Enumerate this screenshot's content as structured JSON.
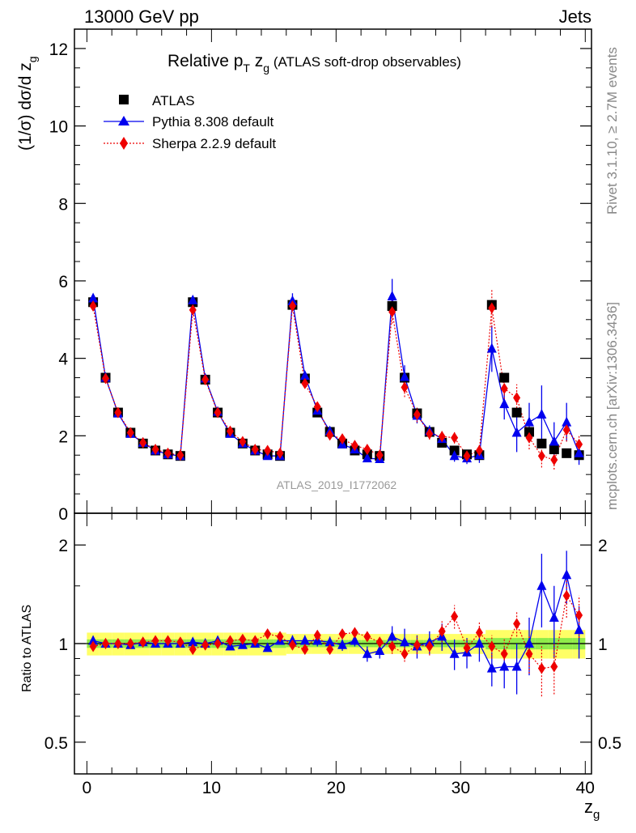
{
  "header": {
    "left": "13000 GeV pp",
    "right": "Jets"
  },
  "side_labels": {
    "rivet": "Rivet 3.1.10, ≥ 2.7M events",
    "mcplots": "mcplots.cern.ch [arXiv:1306.3436]"
  },
  "colors": {
    "atlas": "#000000",
    "pythia": "#0000ee",
    "sherpa": "#ee0000",
    "band_inner": "#33dd33",
    "band_outer": "#ffff66"
  },
  "chart_data": [
    {
      "type": "scatter",
      "title_main": "Relative p",
      "title_sub_T": "T",
      "title_mid": " z",
      "title_sub_g": "g",
      "title_rest": " (ATLAS soft-drop observables)",
      "ylabel": "(1/σ) dσ/d z",
      "ylabel_sub": "g",
      "watermark": "ATLAS_2019_I1772062",
      "xlim": [
        -1,
        40.5
      ],
      "ylim": [
        0,
        12.5
      ],
      "yticks": [
        "0",
        "2",
        "4",
        "6",
        "8",
        "10",
        "12"
      ],
      "legend": [
        {
          "label": "ATLAS",
          "marker": "square"
        },
        {
          "label": "Pythia 8.308 default",
          "marker": "triangle"
        },
        {
          "label": "Sherpa 2.2.9 default",
          "marker": "diamond"
        }
      ],
      "x": [
        0.5,
        1.5,
        2.5,
        3.5,
        4.5,
        5.5,
        6.5,
        7.5,
        8.5,
        9.5,
        10.5,
        11.5,
        12.5,
        13.5,
        14.5,
        15.5,
        16.5,
        17.5,
        18.5,
        19.5,
        20.5,
        21.5,
        22.5,
        23.5,
        24.5,
        25.5,
        26.5,
        27.5,
        28.5,
        29.5,
        30.5,
        31.5,
        32.5,
        33.5,
        34.5,
        35.5,
        36.5,
        37.5,
        38.5,
        39.5
      ],
      "series": [
        {
          "name": "ATLAS",
          "values": [
            5.45,
            3.5,
            2.6,
            2.08,
            1.8,
            1.62,
            1.52,
            1.48,
            5.45,
            3.45,
            2.6,
            2.08,
            1.8,
            1.62,
            1.52,
            1.48,
            5.38,
            3.48,
            2.6,
            2.1,
            1.8,
            1.62,
            1.52,
            1.48,
            5.35,
            3.5,
            2.58,
            2.1,
            1.82,
            1.62,
            1.52,
            1.5,
            5.38,
            3.5,
            2.6,
            2.1,
            1.8,
            1.65,
            1.55,
            1.5
          ]
        },
        {
          "name": "Pythia 8.308 default",
          "values": [
            5.55,
            3.5,
            2.58,
            2.05,
            1.82,
            1.62,
            1.52,
            1.48,
            5.5,
            3.48,
            2.62,
            2.05,
            1.8,
            1.62,
            1.48,
            1.48,
            5.48,
            3.55,
            2.65,
            2.12,
            1.78,
            1.65,
            1.42,
            1.4,
            5.6,
            3.52,
            2.52,
            2.12,
            1.92,
            1.48,
            1.42,
            1.5,
            4.25,
            2.82,
            2.08,
            2.35,
            2.55,
            1.85,
            2.35,
            1.55
          ],
          "errors": [
            0.05,
            0.03,
            0.03,
            0.03,
            0.02,
            0.02,
            0.02,
            0.02,
            0.05,
            0.03,
            0.03,
            0.03,
            0.02,
            0.02,
            0.03,
            0.03,
            0.2,
            0.1,
            0.08,
            0.06,
            0.05,
            0.05,
            0.05,
            0.05,
            0.45,
            0.3,
            0.2,
            0.15,
            0.15,
            0.15,
            0.15,
            0.2,
            0.6,
            0.4,
            0.5,
            0.5,
            0.75,
            0.5,
            0.5,
            0.3
          ]
        },
        {
          "name": "Sherpa 2.2.9 default",
          "values": [
            5.35,
            3.48,
            2.6,
            2.08,
            1.82,
            1.65,
            1.55,
            1.5,
            5.25,
            3.45,
            2.6,
            2.12,
            1.85,
            1.65,
            1.62,
            1.55,
            5.35,
            3.35,
            2.75,
            2.02,
            1.92,
            1.75,
            1.65,
            1.5,
            5.2,
            3.25,
            2.55,
            2.05,
            1.98,
            1.95,
            1.48,
            1.62,
            5.3,
            3.22,
            2.98,
            1.95,
            1.48,
            1.38,
            2.15,
            1.78
          ],
          "errors": [
            0.05,
            0.03,
            0.03,
            0.03,
            0.02,
            0.02,
            0.02,
            0.02,
            0.05,
            0.03,
            0.03,
            0.03,
            0.02,
            0.02,
            0.03,
            0.03,
            0.1,
            0.08,
            0.08,
            0.06,
            0.05,
            0.05,
            0.05,
            0.05,
            0.3,
            0.25,
            0.2,
            0.15,
            0.15,
            0.15,
            0.12,
            0.15,
            0.5,
            0.35,
            0.35,
            0.3,
            0.3,
            0.25,
            0.3,
            0.25
          ]
        }
      ]
    },
    {
      "type": "scatter",
      "ylabel": "Ratio to ATLAS",
      "xlabel": "z",
      "xlabel_sub": "g",
      "xlim": [
        -1,
        40.5
      ],
      "ylim_log": [
        0.4,
        2.5
      ],
      "xticks": [
        "0",
        "10",
        "20",
        "30",
        "40"
      ],
      "yticks": [
        "0.5",
        "1",
        "2"
      ],
      "series": [
        {
          "name": "Pythia 8.308 default",
          "values": [
            1.02,
            1.0,
            1.0,
            0.99,
            1.01,
            1.0,
            1.0,
            1.0,
            1.01,
            1.0,
            1.02,
            0.98,
            0.99,
            1.0,
            0.97,
            1.02,
            1.02,
            1.02,
            1.02,
            1.01,
            0.99,
            1.02,
            0.93,
            0.95,
            1.05,
            1.01,
            0.98,
            1.01,
            1.05,
            0.93,
            0.94,
            1.0,
            0.84,
            0.85,
            0.85,
            1.0,
            1.5,
            1.2,
            1.62,
            1.1
          ],
          "errors": [
            0.02,
            0.02,
            0.02,
            0.02,
            0.02,
            0.02,
            0.02,
            0.02,
            0.02,
            0.02,
            0.02,
            0.02,
            0.02,
            0.02,
            0.02,
            0.02,
            0.04,
            0.04,
            0.04,
            0.04,
            0.04,
            0.04,
            0.05,
            0.05,
            0.08,
            0.1,
            0.08,
            0.08,
            0.1,
            0.1,
            0.1,
            0.12,
            0.1,
            0.12,
            0.15,
            0.2,
            0.38,
            0.3,
            0.3,
            0.2
          ]
        },
        {
          "name": "Sherpa 2.2.9 default",
          "values": [
            0.98,
            1.0,
            1.0,
            1.0,
            1.01,
            1.02,
            1.02,
            1.01,
            0.96,
            0.99,
            1.0,
            1.02,
            1.03,
            1.02,
            1.07,
            1.05,
            0.99,
            0.96,
            1.06,
            0.96,
            1.07,
            1.08,
            1.05,
            1.01,
            0.98,
            0.93,
            0.99,
            0.98,
            1.09,
            1.21,
            0.97,
            1.08,
            0.98,
            0.93,
            1.15,
            0.93,
            0.84,
            0.85,
            1.4,
            1.22
          ],
          "errors": [
            0.01,
            0.01,
            0.01,
            0.01,
            0.01,
            0.01,
            0.01,
            0.01,
            0.01,
            0.01,
            0.01,
            0.01,
            0.01,
            0.01,
            0.02,
            0.02,
            0.02,
            0.02,
            0.02,
            0.03,
            0.03,
            0.03,
            0.03,
            0.03,
            0.05,
            0.05,
            0.06,
            0.06,
            0.08,
            0.1,
            0.06,
            0.08,
            0.08,
            0.1,
            0.1,
            0.12,
            0.15,
            0.15,
            0.2,
            0.18
          ]
        }
      ]
    }
  ]
}
